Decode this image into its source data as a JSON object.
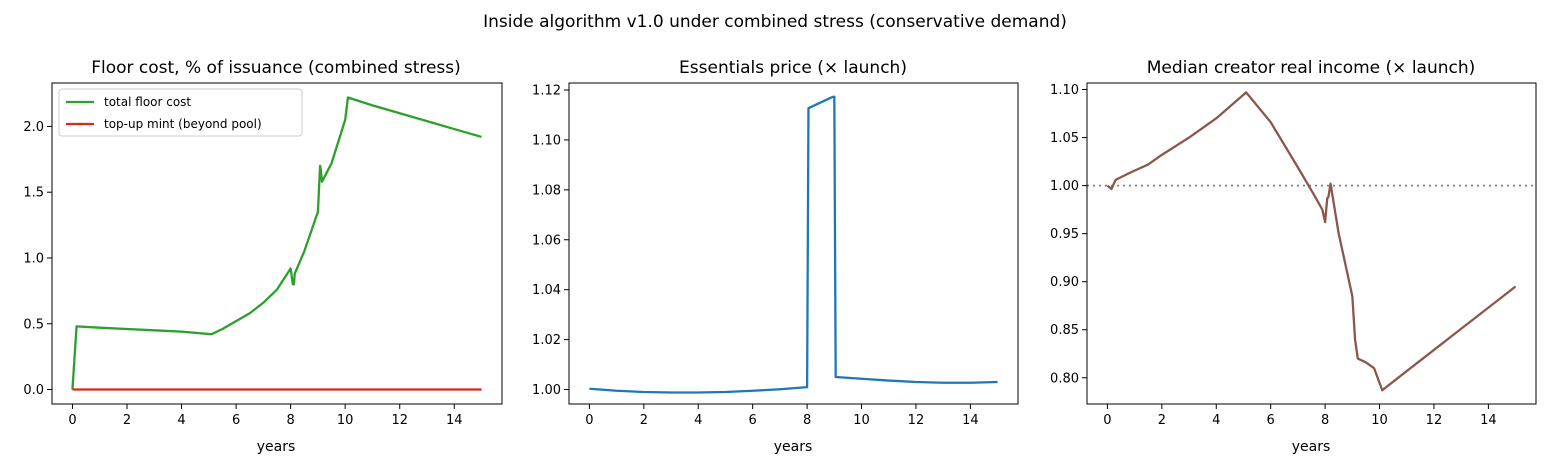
{
  "figure": {
    "suptitle": "Inside algorithm v1.0 under combined stress (conservative demand)"
  },
  "chart_data": [
    {
      "type": "line",
      "title": "Floor cost, % of issuance (combined stress)",
      "xlabel": "years",
      "ylabel": "",
      "xlim": [
        -0.75,
        15.75
      ],
      "ylim": [
        -0.11,
        2.33
      ],
      "xticks": [
        0,
        2,
        4,
        6,
        8,
        10,
        12,
        14
      ],
      "yticks": [
        0.0,
        0.5,
        1.0,
        1.5,
        2.0
      ],
      "ytick_labels": [
        "0.0",
        "0.5",
        "1.0",
        "1.5",
        "2.0"
      ],
      "grid": false,
      "legend": "upper left",
      "series": [
        {
          "name": "total floor cost",
          "color": "#2ca02c",
          "x": [
            0,
            0.15,
            1,
            2,
            3,
            4,
            5.1,
            5.5,
            6,
            6.5,
            7,
            7.5,
            8.0,
            8.08,
            8.12,
            8.15,
            8.5,
            9.0,
            9.08,
            9.1,
            9.15,
            9.5,
            10.0,
            10.1,
            11,
            12,
            13,
            14,
            15
          ],
          "y": [
            0.0,
            0.48,
            0.47,
            0.46,
            0.45,
            0.44,
            0.42,
            0.46,
            0.52,
            0.58,
            0.66,
            0.76,
            0.92,
            0.8,
            0.8,
            0.88,
            1.05,
            1.35,
            1.7,
            1.68,
            1.58,
            1.72,
            2.05,
            2.22,
            2.16,
            2.1,
            2.04,
            1.98,
            1.92
          ]
        },
        {
          "name": "top-up mint (beyond pool)",
          "color": "#d62728",
          "x": [
            0,
            15
          ],
          "y": [
            0.0,
            0.0
          ]
        }
      ]
    },
    {
      "type": "line",
      "title": "Essentials price (× launch)",
      "xlabel": "years",
      "ylabel": "",
      "xlim": [
        -0.75,
        15.75
      ],
      "ylim": [
        0.9942,
        1.1228
      ],
      "xticks": [
        0,
        2,
        4,
        6,
        8,
        10,
        12,
        14
      ],
      "yticks": [
        1.0,
        1.02,
        1.04,
        1.06,
        1.08,
        1.1,
        1.12
      ],
      "ytick_labels": [
        "1.00",
        "1.02",
        "1.04",
        "1.06",
        "1.08",
        "1.10",
        "1.12"
      ],
      "grid": false,
      "series": [
        {
          "name": "",
          "color": "#1f77b4",
          "x": [
            0,
            1,
            2,
            3,
            4,
            5,
            6,
            7,
            7.95,
            8.0,
            8.05,
            8.5,
            8.95,
            9.0,
            9.05,
            10,
            11,
            12,
            13,
            14,
            15
          ],
          "y": [
            1.0003,
            0.9995,
            0.999,
            0.9988,
            0.9988,
            0.999,
            0.9995,
            1.0001,
            1.0009,
            1.0009,
            1.1127,
            1.115,
            1.1173,
            1.1173,
            1.005,
            1.0043,
            1.0036,
            1.003,
            1.0027,
            1.0027,
            1.003
          ]
        }
      ]
    },
    {
      "type": "line",
      "title": "Median creator real income (× launch)",
      "xlabel": "years",
      "ylabel": "",
      "xlim": [
        -0.75,
        15.75
      ],
      "ylim": [
        0.7727,
        1.1068
      ],
      "xticks": [
        0,
        2,
        4,
        6,
        8,
        10,
        12,
        14
      ],
      "yticks": [
        0.8,
        0.85,
        0.9,
        0.95,
        1.0,
        1.05,
        1.1
      ],
      "ytick_labels": [
        "0.80",
        "0.85",
        "0.90",
        "0.95",
        "1.00",
        "1.05",
        "1.10"
      ],
      "grid": false,
      "reference_line": {
        "y": 1.0,
        "style": "dotted",
        "color": "#808080"
      },
      "series": [
        {
          "name": "",
          "color": "#8c564b",
          "x": [
            0,
            0.15,
            0.3,
            0.8,
            1.5,
            2.0,
            3.0,
            4.0,
            5.1,
            6.0,
            7.0,
            7.6,
            7.9,
            8.0,
            8.08,
            8.12,
            8.2,
            8.5,
            9.0,
            9.1,
            9.2,
            9.5,
            9.8,
            10.1,
            11,
            12,
            13,
            14,
            15
          ],
          "y": [
            1.0,
            0.9965,
            1.006,
            1.013,
            1.022,
            1.032,
            1.05,
            1.07,
            1.097,
            1.066,
            1.019,
            0.99,
            0.975,
            0.962,
            0.987,
            0.988,
            1.002,
            0.95,
            0.885,
            0.84,
            0.82,
            0.816,
            0.81,
            0.787,
            0.807,
            0.829,
            0.851,
            0.873,
            0.895
          ]
        }
      ]
    }
  ]
}
